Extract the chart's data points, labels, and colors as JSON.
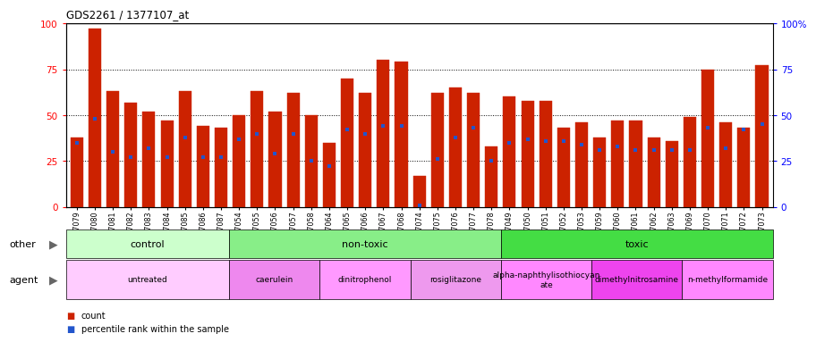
{
  "title": "GDS2261 / 1377107_at",
  "samples": [
    "GSM127079",
    "GSM127080",
    "GSM127081",
    "GSM127082",
    "GSM127083",
    "GSM127084",
    "GSM127085",
    "GSM127086",
    "GSM127087",
    "GSM127054",
    "GSM127055",
    "GSM127056",
    "GSM127057",
    "GSM127058",
    "GSM127064",
    "GSM127065",
    "GSM127066",
    "GSM127067",
    "GSM127068",
    "GSM127074",
    "GSM127075",
    "GSM127076",
    "GSM127077",
    "GSM127078",
    "GSM127049",
    "GSM127050",
    "GSM127051",
    "GSM127052",
    "GSM127053",
    "GSM127059",
    "GSM127060",
    "GSM127061",
    "GSM127062",
    "GSM127063",
    "GSM127069",
    "GSM127070",
    "GSM127071",
    "GSM127072",
    "GSM127073"
  ],
  "counts": [
    38,
    97,
    63,
    57,
    52,
    47,
    63,
    44,
    43,
    50,
    63,
    52,
    62,
    50,
    35,
    70,
    62,
    80,
    79,
    17,
    62,
    65,
    62,
    33,
    60,
    58,
    58,
    43,
    46,
    38,
    47,
    47,
    38,
    36,
    49,
    75,
    46,
    43,
    77
  ],
  "percentile_ranks": [
    35,
    48,
    30,
    27,
    32,
    27,
    38,
    27,
    27,
    37,
    40,
    29,
    40,
    25,
    22,
    42,
    40,
    44,
    44,
    1,
    26,
    38,
    43,
    25,
    35,
    37,
    36,
    36,
    34,
    31,
    33,
    31,
    31,
    31,
    31,
    43,
    32,
    42,
    45
  ],
  "bar_color": "#cc2200",
  "dot_color": "#2255cc",
  "yticks": [
    0,
    25,
    50,
    75,
    100
  ],
  "grid_values": [
    25,
    50,
    75
  ],
  "other_groups": [
    {
      "label": "control",
      "start": 0,
      "end": 9,
      "color": "#ccffcc"
    },
    {
      "label": "non-toxic",
      "start": 9,
      "end": 24,
      "color": "#88ee88"
    },
    {
      "label": "toxic",
      "start": 24,
      "end": 39,
      "color": "#44dd44"
    }
  ],
  "agent_groups": [
    {
      "label": "untreated",
      "start": 0,
      "end": 9,
      "color": "#ffccff"
    },
    {
      "label": "caerulein",
      "start": 9,
      "end": 14,
      "color": "#ee88ee"
    },
    {
      "label": "dinitrophenol",
      "start": 14,
      "end": 19,
      "color": "#ff99ff"
    },
    {
      "label": "rosiglitazone",
      "start": 19,
      "end": 24,
      "color": "#ee99ee"
    },
    {
      "label": "alpha-naphthylisothiocyanate",
      "start": 24,
      "end": 29,
      "color": "#ff88ff"
    },
    {
      "label": "dimethylnitrosamine",
      "start": 29,
      "end": 34,
      "color": "#ee44ee"
    },
    {
      "label": "n-methylformamide",
      "start": 34,
      "end": 39,
      "color": "#ff88ff"
    }
  ]
}
